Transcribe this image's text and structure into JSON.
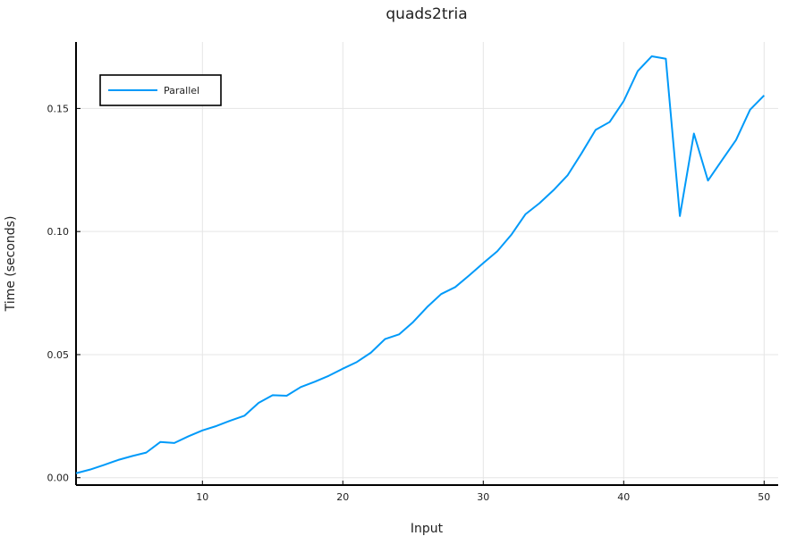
{
  "chart_data": {
    "type": "line",
    "title": "quads2tria",
    "xlabel": "Input",
    "ylabel": "Time (seconds)",
    "xlim": [
      1,
      51
    ],
    "ylim": [
      -0.003,
      0.177
    ],
    "x_ticks": [
      10,
      20,
      30,
      40,
      50
    ],
    "x_tick_labels": [
      "10",
      "20",
      "30",
      "40",
      "50"
    ],
    "y_ticks": [
      0.0,
      0.05,
      0.1,
      0.15
    ],
    "y_tick_labels": [
      "0.00",
      "0.05",
      "0.10",
      "0.15"
    ],
    "grid": true,
    "legend_position": "top-left",
    "x": [
      1,
      2,
      3,
      4,
      5,
      6,
      7,
      8,
      9,
      10,
      11,
      12,
      13,
      14,
      15,
      16,
      17,
      18,
      19,
      20,
      21,
      22,
      23,
      24,
      25,
      26,
      27,
      28,
      29,
      30,
      31,
      32,
      33,
      34,
      35,
      36,
      37,
      38,
      39,
      40,
      41,
      42,
      43,
      44,
      45,
      46,
      47,
      48,
      49,
      50
    ],
    "series": [
      {
        "name": "Parallel",
        "color": "#009af9",
        "values": [
          0.0018,
          0.0033,
          0.0052,
          0.0072,
          0.0088,
          0.0102,
          0.0145,
          0.0141,
          0.0168,
          0.0192,
          0.021,
          0.0232,
          0.0252,
          0.0304,
          0.0335,
          0.0333,
          0.0368,
          0.039,
          0.0414,
          0.0443,
          0.047,
          0.0508,
          0.0563,
          0.0582,
          0.0632,
          0.0693,
          0.0746,
          0.0774,
          0.0822,
          0.0872,
          0.092,
          0.0987,
          0.107,
          0.1115,
          0.1168,
          0.1228,
          0.1318,
          0.1413,
          0.1445,
          0.153,
          0.1652,
          0.1712,
          0.1702,
          0.1063,
          0.1398,
          0.1207,
          0.129,
          0.1372,
          0.1495,
          0.1553
        ]
      }
    ]
  }
}
